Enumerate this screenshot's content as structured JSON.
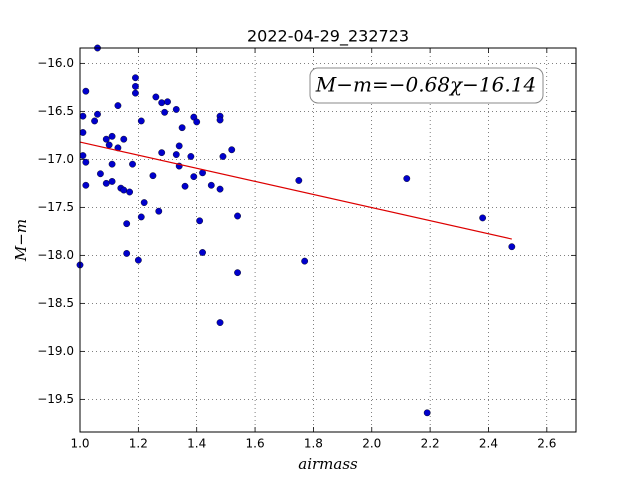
{
  "chart_data": {
    "type": "scatter",
    "title": "2022-04-29_232723",
    "xlabel": "airmass",
    "ylabel": "M−m",
    "annotation": "M−m=−0.68χ−16.14",
    "xlim": [
      1.0,
      2.7
    ],
    "ylim": [
      -19.84,
      -15.84
    ],
    "xticks": [
      {
        "value": 1.0,
        "label": "1.0"
      },
      1.2,
      1.4,
      1.6,
      1.8,
      {
        "value": 2.0,
        "label": "2.0"
      },
      2.2,
      2.4,
      2.6
    ],
    "yticks": [
      {
        "value": -16.0,
        "label": "−16.0"
      },
      {
        "value": -16.5,
        "label": "−16.5"
      },
      {
        "value": -17.0,
        "label": "−17.0"
      },
      {
        "value": -17.5,
        "label": "−17.5"
      },
      {
        "value": -18.0,
        "label": "−18.0"
      },
      {
        "value": -18.5,
        "label": "−18.5"
      },
      {
        "value": -19.0,
        "label": "−19.0"
      },
      {
        "value": -19.5,
        "label": "−19.5"
      }
    ],
    "grid": true,
    "color": "#0000cc",
    "x": [
      1.0,
      1.01,
      1.01,
      1.01,
      1.02,
      1.02,
      1.02,
      1.05,
      1.06,
      1.06,
      1.07,
      1.09,
      1.09,
      1.1,
      1.11,
      1.11,
      1.11,
      1.13,
      1.13,
      1.14,
      1.15,
      1.15,
      1.16,
      1.16,
      1.17,
      1.18,
      1.19,
      1.19,
      1.19,
      1.2,
      1.21,
      1.21,
      1.22,
      1.25,
      1.26,
      1.27,
      1.28,
      1.28,
      1.29,
      1.3,
      1.33,
      1.33,
      1.34,
      1.34,
      1.35,
      1.36,
      1.38,
      1.39,
      1.39,
      1.4,
      1.41,
      1.42,
      1.42,
      1.45,
      1.48,
      1.48,
      1.48,
      1.48,
      1.49,
      1.52,
      1.54,
      1.54,
      1.75,
      1.77,
      2.12,
      2.19,
      2.38,
      2.48
    ],
    "values": [
      -18.1,
      -16.55,
      -16.72,
      -16.96,
      -16.29,
      -17.27,
      -17.03,
      -16.6,
      -15.84,
      -16.53,
      -17.15,
      -16.79,
      -17.25,
      -16.85,
      -17.05,
      -17.23,
      -16.76,
      -16.88,
      -16.44,
      -17.3,
      -17.32,
      -16.79,
      -17.67,
      -17.98,
      -17.34,
      -17.05,
      -16.15,
      -16.24,
      -16.31,
      -18.05,
      -17.6,
      -16.6,
      -17.45,
      -17.17,
      -16.35,
      -17.54,
      -16.93,
      -16.41,
      -16.51,
      -16.4,
      -16.48,
      -16.95,
      -16.86,
      -17.07,
      -16.67,
      -17.28,
      -16.97,
      -16.56,
      -17.18,
      -16.61,
      -17.64,
      -17.97,
      -17.14,
      -17.27,
      -17.31,
      -16.55,
      -16.59,
      -18.7,
      -16.97,
      -16.9,
      -18.18,
      -17.59,
      -17.22,
      -18.06,
      -17.2,
      -19.64,
      -17.61,
      -17.91
    ],
    "fit_line": {
      "color": "#dd0000",
      "x": [
        1.0,
        2.48
      ],
      "values": [
        -16.82,
        -17.83
      ]
    }
  }
}
